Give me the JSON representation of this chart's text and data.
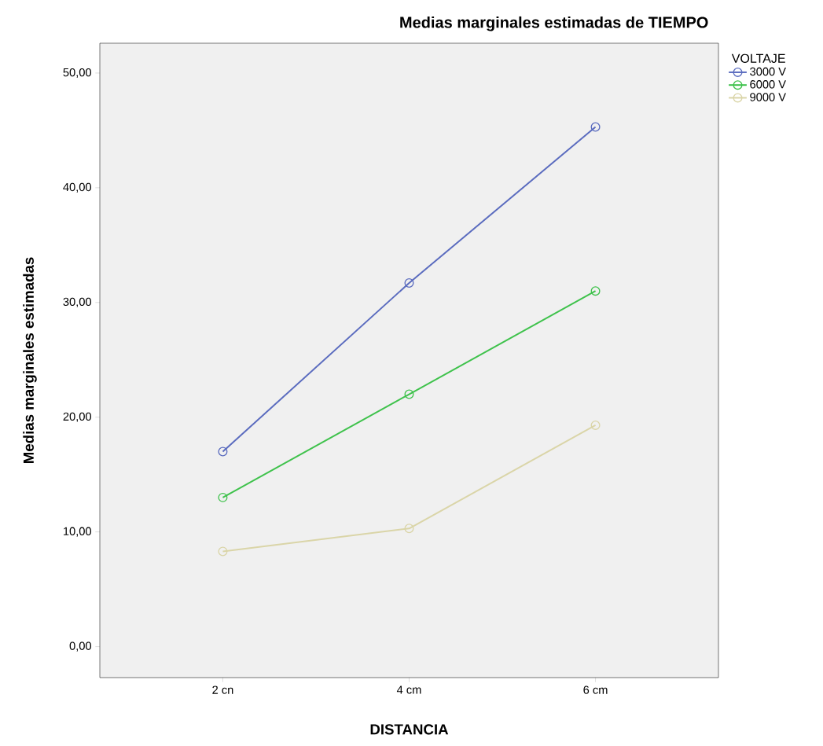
{
  "chart_data": {
    "type": "line",
    "title": "Medias marginales estimadas de TIEMPO",
    "xlabel": "DISTANCIA",
    "ylabel": "Medias marginales estimadas",
    "legend_title": "VOLTAJE",
    "categories": [
      "2 cn",
      "4 cm",
      "6 cm"
    ],
    "series": [
      {
        "name": "3000 V",
        "color": "#5b6cbf",
        "values": [
          17.0,
          31.7,
          45.3
        ]
      },
      {
        "name": "6000 V",
        "color": "#3fc24c",
        "values": [
          13.0,
          22.0,
          31.0
        ]
      },
      {
        "name": "9000 V",
        "color": "#dad5a8",
        "values": [
          8.3,
          10.3,
          19.3
        ]
      }
    ],
    "ylim": [
      -2.7,
      52.6
    ],
    "yticks": [
      {
        "value": 0,
        "label": "0,00"
      },
      {
        "value": 10,
        "label": "10,00"
      },
      {
        "value": 20,
        "label": "20,00"
      },
      {
        "value": 30,
        "label": "30,00"
      },
      {
        "value": 40,
        "label": "40,00"
      },
      {
        "value": 50,
        "label": "50,00"
      }
    ],
    "marker": "circle",
    "line_style": "solid",
    "legend": "top right"
  }
}
